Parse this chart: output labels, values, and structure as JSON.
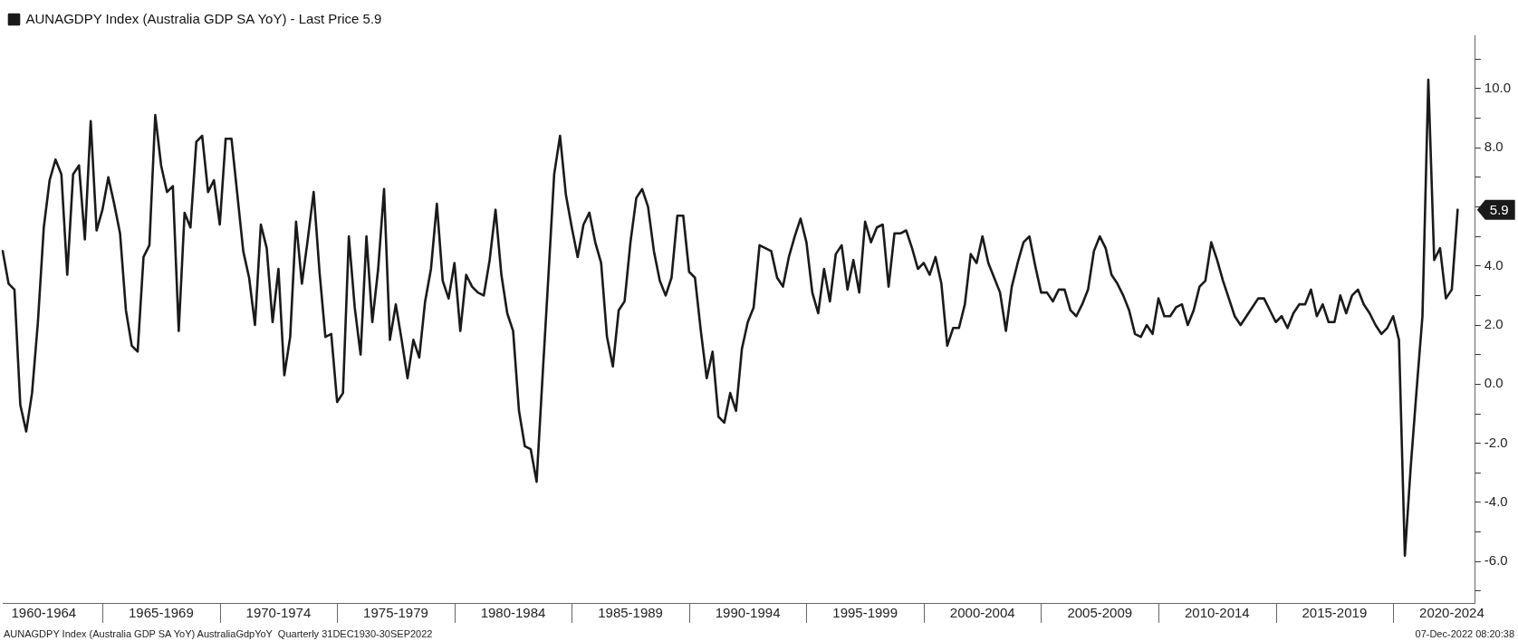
{
  "chart_data": {
    "type": "line",
    "categories": [
      null,
      null,
      null,
      null,
      null,
      null,
      null,
      "1960-1964",
      null,
      null,
      null,
      null,
      null,
      null,
      null,
      null,
      null,
      null,
      null,
      null,
      null,
      null,
      null,
      null,
      null,
      null,
      null,
      "1965-1969",
      null,
      null,
      null,
      null,
      null,
      null,
      null,
      null,
      null,
      null,
      null,
      null,
      null,
      null,
      null,
      null,
      null,
      null,
      null,
      "1970-1974",
      null,
      null,
      null,
      null,
      null,
      null,
      null,
      null,
      null,
      null,
      null,
      null,
      null,
      null,
      null,
      null,
      null,
      null,
      null,
      "1975-1979",
      null,
      null,
      null,
      null,
      null,
      null,
      null,
      null,
      null,
      null,
      null,
      null,
      null,
      null,
      null,
      null,
      null,
      null,
      null,
      "1980-1984",
      null,
      null,
      null,
      null,
      null,
      null,
      null,
      null,
      null,
      null,
      null,
      null,
      null,
      null,
      null,
      null,
      null,
      null,
      null,
      "1985-1989",
      null,
      null,
      null,
      null,
      null,
      null,
      null,
      null,
      null,
      null,
      null,
      null,
      null,
      null,
      null,
      null,
      null,
      null,
      null,
      "1990-1994",
      null,
      null,
      null,
      null,
      null,
      null,
      null,
      null,
      null,
      null,
      null,
      null,
      null,
      null,
      null,
      null,
      null,
      null,
      null,
      "1995-1999",
      null,
      null,
      null,
      null,
      null,
      null,
      null,
      null,
      null,
      null,
      null,
      null,
      null,
      null,
      null,
      null,
      null,
      null,
      null,
      "2000-2004",
      null,
      null,
      null,
      null,
      null,
      null,
      null,
      null,
      null,
      null,
      null,
      null,
      null,
      null,
      null,
      null,
      null,
      null,
      null,
      "2005-2009",
      null,
      null,
      null,
      null,
      null,
      null,
      null,
      null,
      null,
      null,
      null,
      null,
      null,
      null,
      null,
      null,
      null,
      null,
      null,
      "2010-2014",
      null,
      null,
      null,
      null,
      null,
      null,
      null,
      null,
      null,
      null,
      null,
      null,
      null,
      null,
      null,
      null,
      null,
      null,
      null,
      "2015-2019",
      null,
      null,
      null,
      null,
      null,
      null,
      null,
      null,
      null,
      null,
      null,
      null,
      null,
      null,
      null,
      null,
      null,
      null,
      null,
      "2020-2024",
      null,
      null,
      null,
      null
    ],
    "ylim": [
      -7.4,
      11.8
    ],
    "yticks": [
      {
        "value": -7,
        "label": null
      },
      {
        "value": -6,
        "label": "-6.0"
      },
      {
        "value": -5,
        "label": null
      },
      {
        "value": -4,
        "label": "-4.0"
      },
      {
        "value": -3,
        "label": null
      },
      {
        "value": -2,
        "label": "-2.0"
      },
      {
        "value": -1,
        "label": null
      },
      {
        "value": 0,
        "label": "0.0"
      },
      {
        "value": 1,
        "label": null
      },
      {
        "value": 2,
        "label": "2.0"
      },
      {
        "value": 3,
        "label": null
      },
      {
        "value": 4,
        "label": "4.0"
      },
      {
        "value": 5,
        "label": null
      },
      {
        "value": 6,
        "label": null
      },
      {
        "value": 7,
        "label": null
      },
      {
        "value": 8,
        "label": "8.0"
      },
      {
        "value": 9,
        "label": null
      },
      {
        "value": 10,
        "label": "10.0"
      },
      {
        "value": 11,
        "label": null
      }
    ],
    "legend": "top left",
    "series": [
      {
        "name": "AUNAGDPY Index (Australia GDP SA YoY) - Last Price 5.9",
        "color": "#1a1a1a",
        "values": [
          4.5,
          3.4,
          3.2,
          -0.7,
          -1.6,
          -0.3,
          2.1,
          5.3,
          6.9,
          7.6,
          7.1,
          3.7,
          7.1,
          7.4,
          4.9,
          8.9,
          5.2,
          5.9,
          7.0,
          6.1,
          5.1,
          2.5,
          1.3,
          1.1,
          4.3,
          4.7,
          9.1,
          7.4,
          6.5,
          6.7,
          1.8,
          5.8,
          5.3,
          8.2,
          8.4,
          6.5,
          6.9,
          5.4,
          8.3,
          8.3,
          6.4,
          4.5,
          3.6,
          2.0,
          5.4,
          4.6,
          2.1,
          3.9,
          0.3,
          1.6,
          5.5,
          3.4,
          4.9,
          6.5,
          3.8,
          1.6,
          1.7,
          -0.6,
          -0.3,
          5.0,
          2.6,
          1.0,
          5.0,
          2.1,
          3.9,
          6.6,
          1.5,
          2.7,
          1.5,
          0.2,
          1.5,
          0.9,
          2.8,
          3.9,
          6.1,
          3.5,
          2.9,
          4.1,
          1.8,
          3.7,
          3.3,
          3.1,
          3.0,
          4.2,
          5.9,
          3.7,
          2.4,
          1.8,
          -0.9,
          -2.1,
          -2.2,
          -3.3,
          0.2,
          3.6,
          7.1,
          8.4,
          6.4,
          5.3,
          4.3,
          5.4,
          5.8,
          4.8,
          4.1,
          1.6,
          0.6,
          2.5,
          2.8,
          4.8,
          6.3,
          6.6,
          6.0,
          4.5,
          3.5,
          3.0,
          3.6,
          5.7,
          5.7,
          3.8,
          3.6,
          1.8,
          0.2,
          1.1,
          -1.1,
          -1.3,
          -0.3,
          -0.9,
          1.2,
          2.1,
          2.6,
          4.7,
          4.6,
          4.5,
          3.6,
          3.3,
          4.3,
          5.0,
          5.6,
          4.8,
          3.1,
          2.4,
          3.9,
          2.8,
          4.4,
          4.7,
          3.2,
          4.2,
          3.1,
          5.5,
          4.8,
          5.3,
          5.4,
          3.3,
          5.1,
          5.1,
          5.2,
          4.6,
          3.9,
          4.1,
          3.7,
          4.3,
          3.4,
          1.3,
          1.9,
          1.9,
          2.7,
          4.4,
          4.1,
          5.0,
          4.1,
          3.6,
          3.1,
          1.8,
          3.3,
          4.1,
          4.8,
          5.0,
          4.0,
          3.1,
          3.1,
          2.8,
          3.2,
          3.2,
          2.5,
          2.3,
          2.7,
          3.2,
          4.5,
          5.0,
          4.6,
          3.7,
          3.4,
          3.0,
          2.5,
          1.7,
          1.6,
          2.0,
          1.7,
          2.9,
          2.3,
          2.3,
          2.6,
          2.7,
          2.0,
          2.5,
          3.3,
          3.5,
          4.8,
          4.2,
          3.5,
          2.9,
          2.3,
          2.0,
          2.3,
          2.6,
          2.9,
          2.9,
          2.5,
          2.1,
          2.3,
          1.9,
          2.4,
          2.7,
          2.7,
          3.2,
          2.3,
          2.7,
          2.1,
          2.1,
          3.0,
          2.4,
          3.0,
          3.2,
          2.7,
          2.4,
          2.0,
          1.7,
          1.9,
          2.3,
          1.5,
          -5.8,
          -2.8,
          -0.2,
          2.3,
          10.3,
          4.2,
          4.6,
          2.9,
          3.2,
          5.9,
          null,
          null,
          null
        ]
      }
    ],
    "annotations": [
      "AUNAGDPY Index (Australia GDP SA YoY) AustraliaGdpYoY  Quarterly 31DEC1930-30SEP2022",
      "07-Dec-2022 08:20:38",
      "5.9"
    ]
  }
}
